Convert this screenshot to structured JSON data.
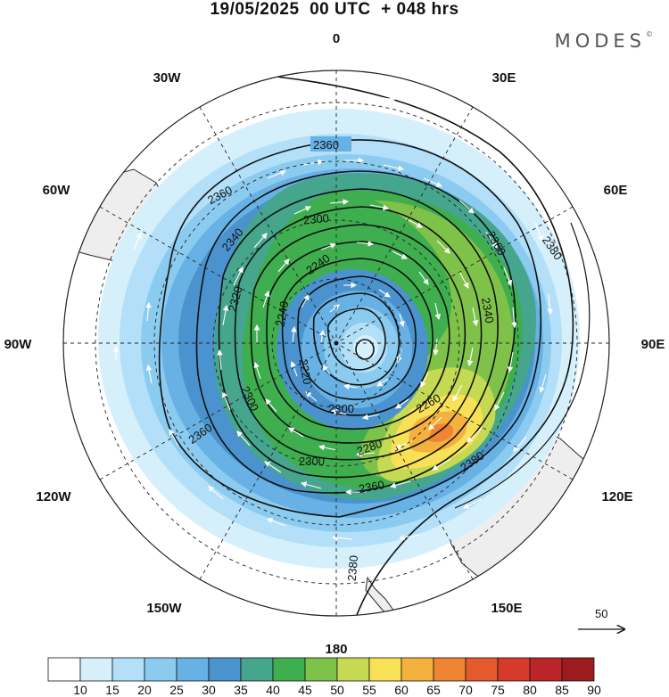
{
  "title": "19/05/2025  00 UTC  + 048 hrs",
  "brand": "MODES",
  "brand_mark": "©",
  "longitude_labels": {
    "lon_0": "0",
    "lon_30E": "30E",
    "lon_60E": "60E",
    "lon_90E": "90E",
    "lon_120E": "120E",
    "lon_150E": "150E",
    "lon_180": "180",
    "lon_150W": "150W",
    "lon_120W": "120W",
    "lon_90W": "90W",
    "lon_60W": "60W",
    "lon_30W": "30W"
  },
  "contours": {
    "c2360a": "2360",
    "c2360b": "2360",
    "c2380": "2380",
    "c2340a": "2340",
    "c2300a": "2300",
    "c2360c": "2360",
    "c2340b": "2340",
    "c2320": "2320",
    "c2240a": "2240",
    "c2240b": "2240",
    "c2220": "2220",
    "c2300b": "2300",
    "c2260": "2260",
    "c2280": "2280",
    "c2300c": "2300",
    "c2360d": "2360",
    "c2380b": "2380",
    "c2360e": "2360"
  },
  "reference_vector": {
    "label": "50"
  },
  "colorbar": {
    "ticks": [
      "10",
      "15",
      "20",
      "25",
      "30",
      "35",
      "40",
      "45",
      "50",
      "55",
      "60",
      "65",
      "70",
      "75",
      "80",
      "85",
      "90"
    ],
    "colors": [
      "#ffffff",
      "#d5f0fb",
      "#b3e0f8",
      "#8ccbf0",
      "#67b1e4",
      "#4a93cf",
      "#45a58d",
      "#3fae4f",
      "#7fc24a",
      "#c5da52",
      "#f8e156",
      "#f5b13e",
      "#ef8533",
      "#e45a2d",
      "#d53a2b",
      "#bb2428",
      "#9b1b1f"
    ]
  },
  "colors": {
    "land": "#eeeeee",
    "coast": "#2a2a2a",
    "contour": "#111111",
    "vector": "#ffffff"
  }
}
